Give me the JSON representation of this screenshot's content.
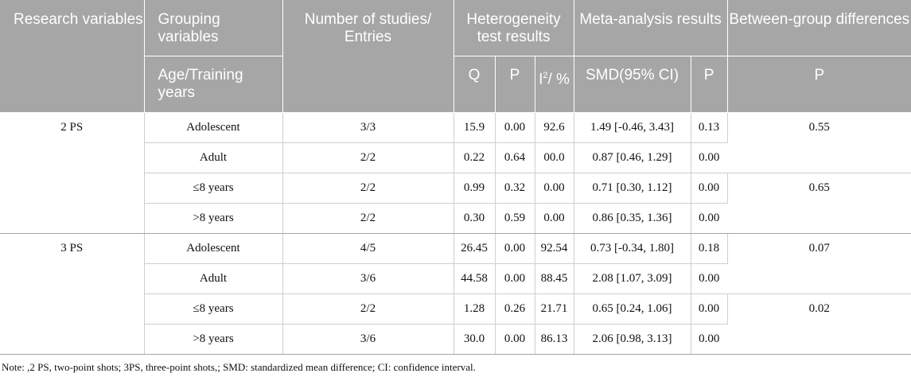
{
  "header": {
    "research_variables": "Research variables",
    "grouping_variables": "Grouping variables",
    "studies_entries": "Number of studies/ Entries",
    "heterogeneity": "Heterogeneity test results",
    "meta_analysis": "Meta-analysis results",
    "between_group": "Between-group differences",
    "age_training": "Age/Training years",
    "q": "Q",
    "p1": "P",
    "i2_prefix": "I",
    "i2_sup": "2",
    "i2_suffix": "/ %",
    "smd": "SMD(95% CI)",
    "p2": "P",
    "p3": "P"
  },
  "rows": [
    {
      "variable": "2 PS",
      "group": "Adolescent",
      "entries": "3/3",
      "q": "15.9",
      "p": "0.00",
      "i2": "92.6",
      "smd": "1.49 [-0.46, 3.43]",
      "p_meta": "0.13",
      "between": "0.55"
    },
    {
      "group": "Adult",
      "entries": "2/2",
      "q": "0.22",
      "p": "0.64",
      "i2": "00.0",
      "smd": "0.87 [0.46, 1.29]",
      "p_meta": "0.00"
    },
    {
      "group": "≤8 years",
      "entries": "2/2",
      "q": "0.99",
      "p": "0.32",
      "i2": "0.00",
      "smd": "0.71 [0.30, 1.12]",
      "p_meta": "0.00",
      "between": "0.65"
    },
    {
      "group": ">8 years",
      "entries": "2/2",
      "q": "0.30",
      "p": "0.59",
      "i2": "0.00",
      "smd": "0.86 [0.35, 1.36]",
      "p_meta": "0.00"
    },
    {
      "variable": "3 PS",
      "group": "Adolescent",
      "entries": "4/5",
      "q": "26.45",
      "p": "0.00",
      "i2": "92.54",
      "smd": "0.73 [-0.34, 1.80]",
      "p_meta": "0.18",
      "between": "0.07"
    },
    {
      "group": "Adult",
      "entries": "3/6",
      "q": "44.58",
      "p": "0.00",
      "i2": "88.45",
      "smd": "2.08 [1.07, 3.09]",
      "p_meta": "0.00"
    },
    {
      "group": "≤8 years",
      "entries": "2/2",
      "q": "1.28",
      "p": "0.26",
      "i2": "21.71",
      "smd": "0.65 [0.24, 1.06]",
      "p_meta": "0.00",
      "between": "0.02"
    },
    {
      "group": ">8 years",
      "entries": "3/6",
      "q": "30.0",
      "p": "0.00",
      "i2": "86.13",
      "smd": "2.06 [0.98, 3.13]",
      "p_meta": "0.00"
    }
  ],
  "note": "Note: ,2 PS, two-point shots; 3PS, three-point shots,; SMD: standardized mean difference; CI: confidence interval."
}
